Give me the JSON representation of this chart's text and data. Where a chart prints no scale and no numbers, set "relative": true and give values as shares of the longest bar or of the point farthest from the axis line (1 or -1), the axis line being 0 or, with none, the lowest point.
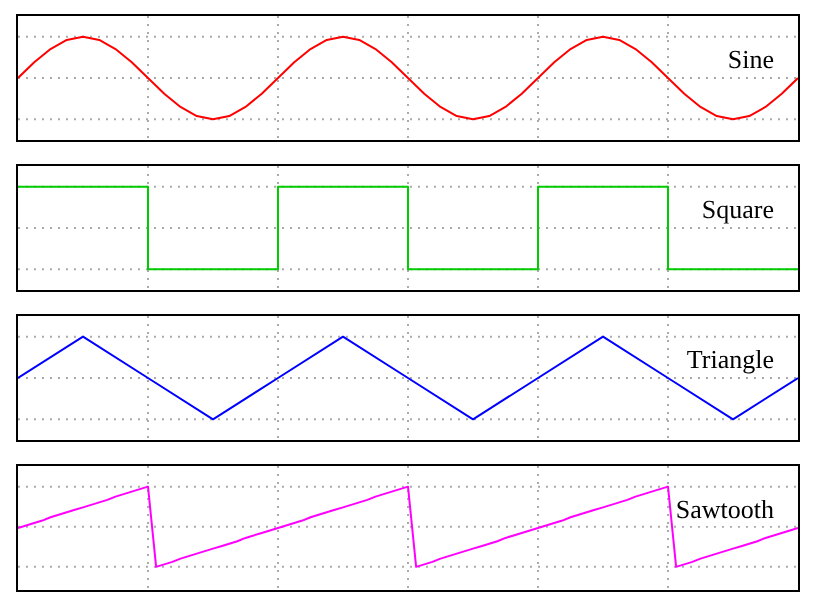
{
  "chart_data": [
    {
      "type": "line",
      "relative": true,
      "tick_labels": false,
      "grid": true,
      "legend": false,
      "categories": [
        null,
        null,
        null,
        null,
        null,
        null,
        null,
        null,
        null,
        null,
        null,
        null,
        null,
        null,
        null,
        null,
        null,
        null,
        null,
        null,
        null,
        null,
        null,
        null,
        null,
        null,
        null,
        null,
        null,
        null,
        null,
        null,
        null,
        null,
        null,
        null,
        null,
        null,
        null,
        null,
        null,
        null,
        null,
        null,
        null,
        null,
        null,
        null,
        null
      ],
      "series": [
        {
          "name": "Sine",
          "color": "#ff0000",
          "values": [
            0.5,
            0.69,
            0.85,
            0.96,
            1,
            0.96,
            0.85,
            0.69,
            0.5,
            0.31,
            0.15,
            0.04,
            0,
            0.04,
            0.15,
            0.31,
            0.5,
            0.69,
            0.85,
            0.96,
            1,
            0.96,
            0.85,
            0.69,
            0.5,
            0.31,
            0.15,
            0.04,
            0,
            0.04,
            0.15,
            0.31,
            0.5,
            0.69,
            0.85,
            0.96,
            1,
            0.96,
            0.85,
            0.69,
            0.5,
            0.31,
            0.15,
            0.04,
            0,
            0.04,
            0.15,
            0.31,
            0.5
          ]
        }
      ]
    },
    {
      "type": "step",
      "relative": true,
      "tick_labels": false,
      "grid": true,
      "legend": false,
      "categories": [
        null,
        null,
        null,
        null,
        null,
        null,
        null
      ],
      "series": [
        {
          "name": "Square",
          "color": "#00cc00",
          "values": [
            1,
            0,
            1,
            0,
            1,
            0,
            0
          ]
        }
      ]
    },
    {
      "type": "line",
      "relative": true,
      "tick_labels": false,
      "grid": true,
      "legend": false,
      "categories": [
        null,
        null,
        null,
        null,
        null,
        null,
        null,
        null,
        null,
        null,
        null,
        null,
        null
      ],
      "series": [
        {
          "name": "Triangle",
          "color": "#0000ff",
          "values": [
            0.5,
            1,
            0.5,
            0,
            0.5,
            1,
            0.5,
            0,
            0.5,
            1,
            0.5,
            0,
            0.5
          ]
        }
      ]
    },
    {
      "type": "line",
      "relative": true,
      "tick_labels": false,
      "grid": true,
      "legend": false,
      "categories": [
        null,
        null,
        null,
        null,
        null,
        null,
        null,
        null,
        null,
        null,
        null,
        null,
        null,
        null,
        null,
        null,
        null,
        null,
        null,
        null,
        null,
        null,
        null,
        null,
        null,
        null,
        null,
        null,
        null,
        null,
        null,
        null,
        null,
        null,
        null,
        null,
        null,
        null,
        null,
        null,
        null,
        null,
        null,
        null,
        null,
        null,
        null,
        null,
        null,
        null,
        null,
        null,
        null,
        null,
        null,
        null,
        null,
        null,
        null,
        null,
        null,
        null,
        null,
        null,
        null,
        null,
        null,
        null,
        null,
        null,
        null,
        null,
        null,
        null,
        null,
        null,
        null,
        null,
        null,
        null,
        null,
        null,
        null,
        null,
        null,
        null,
        null,
        null,
        null,
        null,
        null,
        null,
        null,
        null,
        null,
        null,
        null
      ],
      "series": [
        {
          "name": "Sawtooth",
          "color": "#ff00ff",
          "values": [
            0.5,
            0.53,
            0.56,
            0.59,
            0.63,
            0.66,
            0.69,
            0.72,
            0.75,
            0.78,
            0.81,
            0.84,
            0.88,
            0.91,
            0.94,
            0.97,
            1,
            0.03,
            0.06,
            0.09,
            0.13,
            0.16,
            0.19,
            0.22,
            0.25,
            0.28,
            0.31,
            0.34,
            0.38,
            0.41,
            0.44,
            0.47,
            0.5,
            0.53,
            0.56,
            0.59,
            0.63,
            0.66,
            0.69,
            0.72,
            0.75,
            0.78,
            0.81,
            0.84,
            0.88,
            0.91,
            0.94,
            0.97,
            1,
            0.03,
            0.06,
            0.09,
            0.13,
            0.16,
            0.19,
            0.22,
            0.25,
            0.28,
            0.31,
            0.34,
            0.38,
            0.41,
            0.44,
            0.47,
            0.5,
            0.53,
            0.56,
            0.59,
            0.63,
            0.66,
            0.69,
            0.72,
            0.75,
            0.78,
            0.81,
            0.84,
            0.88,
            0.91,
            0.94,
            0.97,
            1,
            0.03,
            0.06,
            0.09,
            0.13,
            0.16,
            0.19,
            0.22,
            0.25,
            0.28,
            0.31,
            0.34,
            0.38,
            0.41,
            0.44,
            0.47,
            0.5
          ]
        }
      ]
    }
  ]
}
